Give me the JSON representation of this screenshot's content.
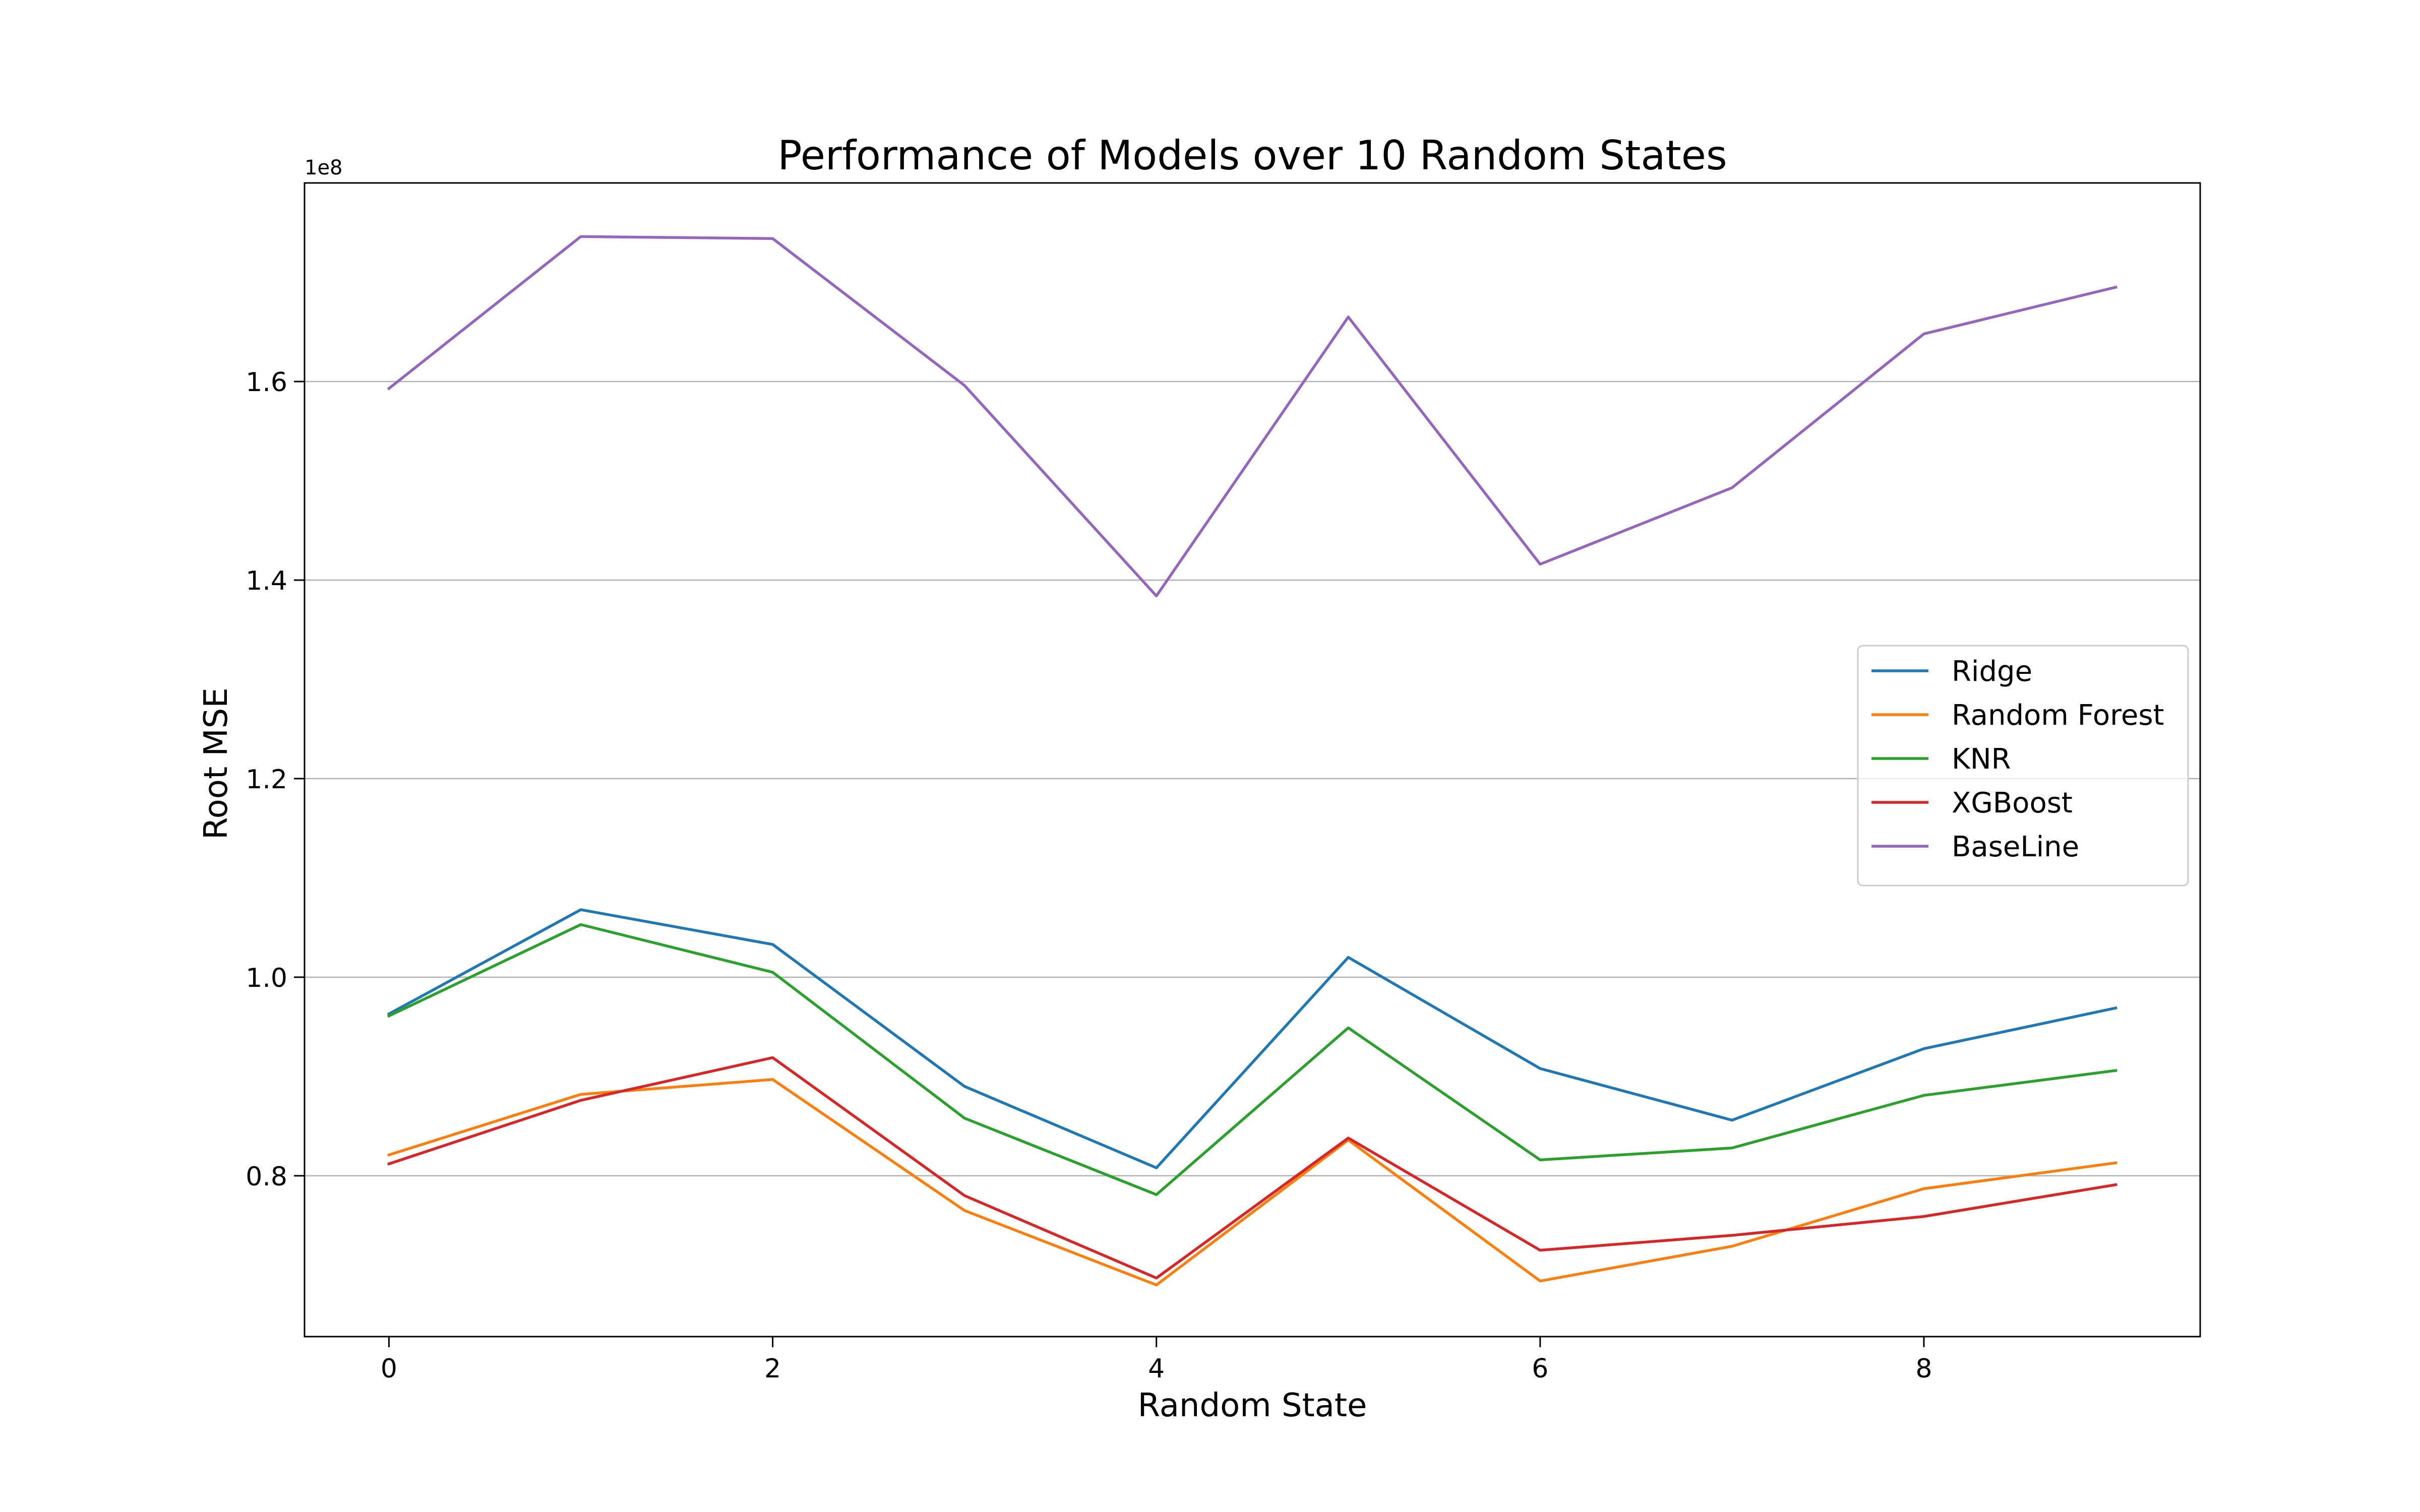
{
  "chart_data": {
    "type": "line",
    "title": "Performance of Models over 10 Random States",
    "xlabel": "Random State",
    "ylabel": "Root MSE",
    "y_offset_label": "1e8",
    "y_scale": 100000000,
    "xlim": [
      -0.44,
      9.44
    ],
    "ylim": [
      63800000,
      180000000
    ],
    "x": [
      0,
      1,
      2,
      3,
      4,
      5,
      6,
      7,
      8,
      9
    ],
    "x_ticks": [
      0,
      2,
      4,
      6,
      8
    ],
    "x_tick_labels": [
      "0",
      "2",
      "4",
      "6",
      "8"
    ],
    "y_ticks": [
      80000000,
      100000000,
      120000000,
      140000000,
      160000000
    ],
    "y_tick_labels": [
      "0.8",
      "1.0",
      "1.2",
      "1.4",
      "1.6"
    ],
    "grid": "horizontal",
    "legend_position": "right",
    "series": [
      {
        "name": "Ridge",
        "color": "#1f77b4",
        "values": [
          96300000,
          106800000,
          103300000,
          89000000,
          80800000,
          102000000,
          90800000,
          85600000,
          92800000,
          96900000
        ]
      },
      {
        "name": "Random Forest",
        "color": "#ff7f0e",
        "values": [
          82100000,
          88200000,
          89700000,
          76500000,
          69000000,
          83600000,
          69400000,
          72900000,
          78700000,
          81300000
        ]
      },
      {
        "name": "KNR",
        "color": "#2ca02c",
        "values": [
          96100000,
          105300000,
          100500000,
          85800000,
          78100000,
          94900000,
          81600000,
          82800000,
          88100000,
          90600000
        ]
      },
      {
        "name": "XGBoost",
        "color": "#d62728",
        "values": [
          81200000,
          87600000,
          91900000,
          78000000,
          69700000,
          83800000,
          72500000,
          74000000,
          75900000,
          79100000
        ]
      },
      {
        "name": "BaseLine",
        "color": "#9467bd",
        "values": [
          159300000,
          174600000,
          174400000,
          159600000,
          138400000,
          166500000,
          141600000,
          149300000,
          164800000,
          169500000
        ]
      }
    ]
  }
}
